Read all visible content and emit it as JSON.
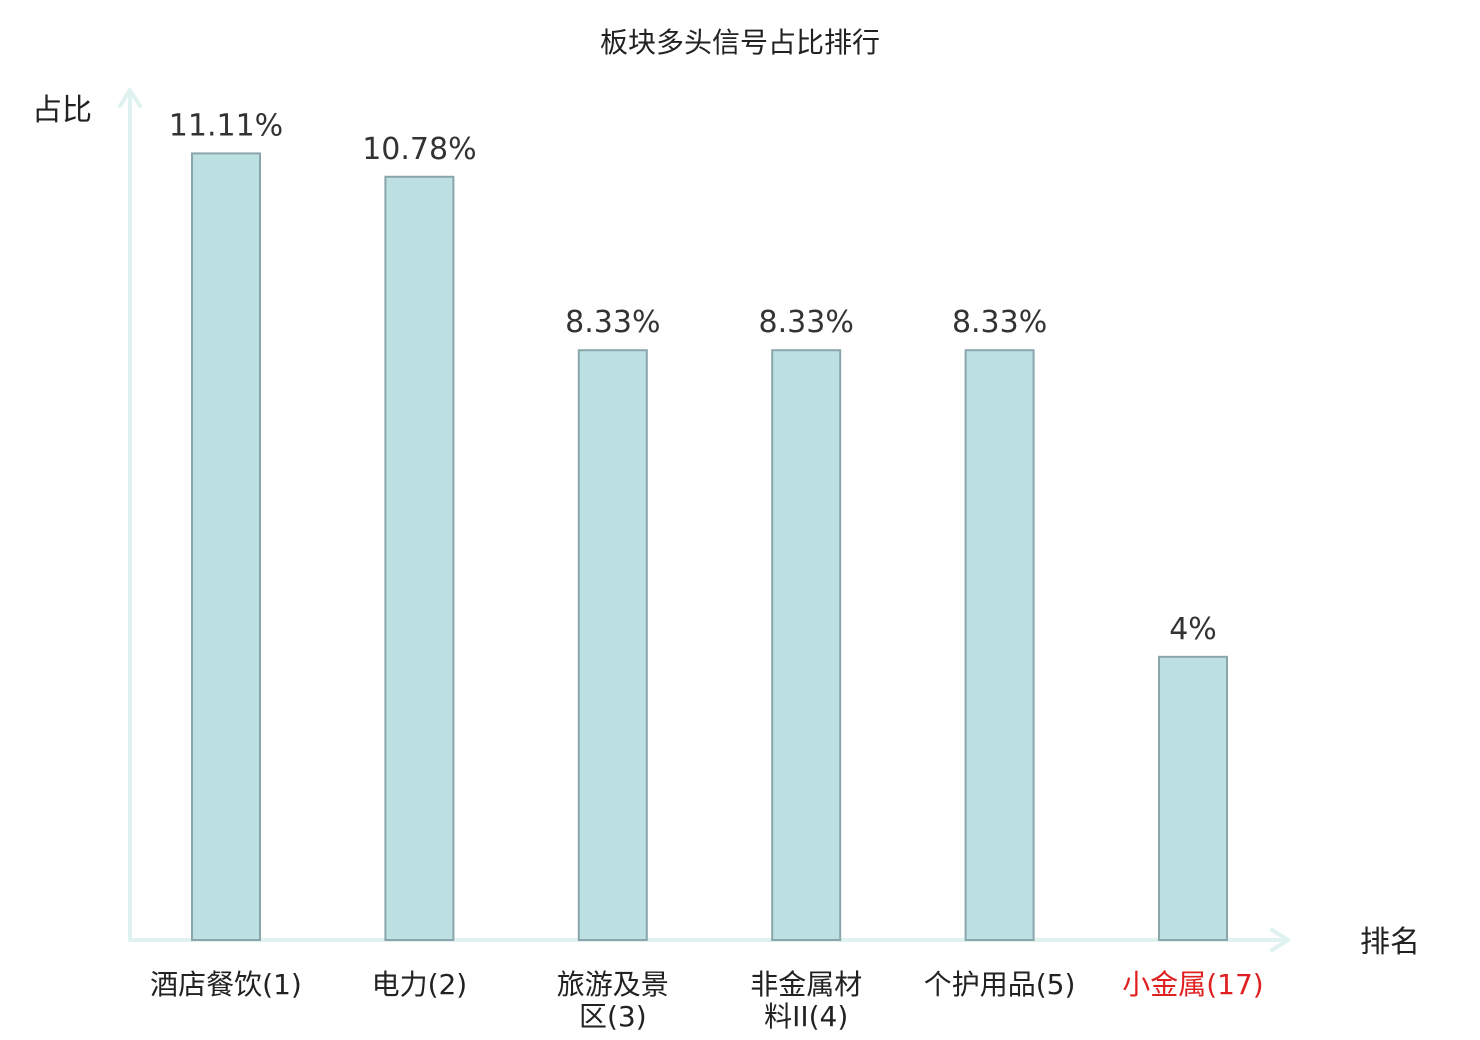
{
  "chart_data": {
    "type": "bar",
    "title": "板块多头信号占比排行",
    "ylabel": "占比",
    "xlabel": "排名",
    "ylim": [
      0,
      12
    ],
    "categories": [
      {
        "lines": [
          "酒店餐饮(1)"
        ],
        "highlight": false
      },
      {
        "lines": [
          "电力(2)"
        ],
        "highlight": false
      },
      {
        "lines": [
          "旅游及景",
          "区(3)"
        ],
        "highlight": false
      },
      {
        "lines": [
          "非金属材",
          "料II(4)"
        ],
        "highlight": false
      },
      {
        "lines": [
          "个护用品(5)"
        ],
        "highlight": false
      },
      {
        "lines": [
          "小金属(17)"
        ],
        "highlight": true
      }
    ],
    "values": [
      11.11,
      10.78,
      8.33,
      8.33,
      8.33,
      4
    ],
    "value_labels": [
      "11.11%",
      "10.78%",
      "8.33%",
      "8.33%",
      "8.33%",
      "4%"
    ],
    "grid": false,
    "colors": {
      "bar_fill": "#bde0e3",
      "bar_stroke": "#8aa6aa",
      "axis": "#dff2ef",
      "highlight_text": "#e02020"
    }
  }
}
